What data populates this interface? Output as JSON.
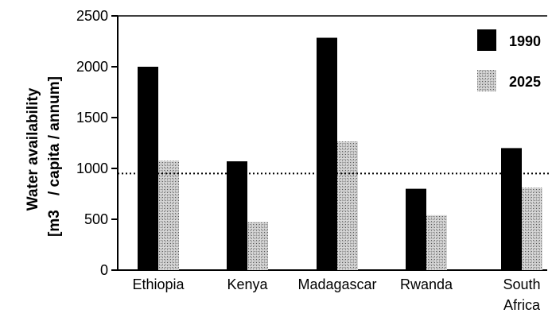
{
  "chart_data": {
    "type": "bar",
    "categories": [
      "Ethiopia",
      "Kenya",
      "Madagascar",
      "Rwanda",
      "South Africa"
    ],
    "series": [
      {
        "name": "1990",
        "values": [
          2000,
          1070,
          2285,
          800,
          1200
        ],
        "color": "#000000",
        "pattern": "solid"
      },
      {
        "name": "2025",
        "values": [
          1075,
          475,
          1265,
          540,
          810
        ],
        "color": "#b8b8b8",
        "pattern": "stipple"
      }
    ],
    "reference_line": {
      "value": 950,
      "style": "dotted"
    },
    "ylim": [
      0,
      2500
    ],
    "yticks": [
      "0",
      "500",
      "1000",
      "1500",
      "2000",
      "2500"
    ],
    "ylabel_line1": "Water availability",
    "ylabel_line2_a": "[m3",
    "ylabel_line2_b": "/ capita / annum]",
    "legend_position": "top-right",
    "grid": false
  }
}
